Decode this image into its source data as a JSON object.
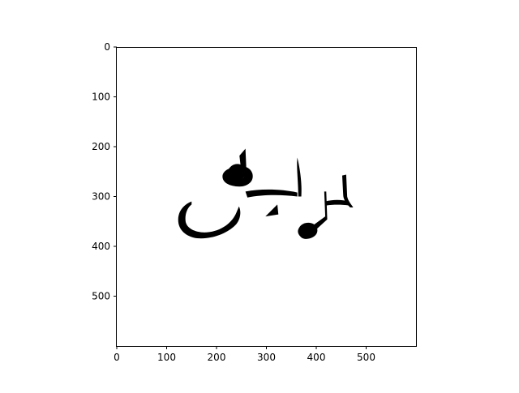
{
  "chart_data": {
    "type": "image",
    "xlim": [
      0,
      600
    ],
    "ylim": [
      600,
      0
    ],
    "x_ticks": [
      0,
      100,
      200,
      300,
      400,
      500
    ],
    "y_ticks": [
      0,
      100,
      200,
      300,
      400,
      500
    ],
    "x_tick_labels": [
      "0",
      "100",
      "200",
      "300",
      "400",
      "500"
    ],
    "y_tick_labels": [
      "0",
      "100",
      "200",
      "300",
      "400",
      "500"
    ],
    "title": "",
    "xlabel": "",
    "ylabel": "",
    "grid": false,
    "image_content": "calligraphy-strokes",
    "colors": {
      "ink": "#000000",
      "background": "#ffffff",
      "axes": "#000000"
    }
  }
}
